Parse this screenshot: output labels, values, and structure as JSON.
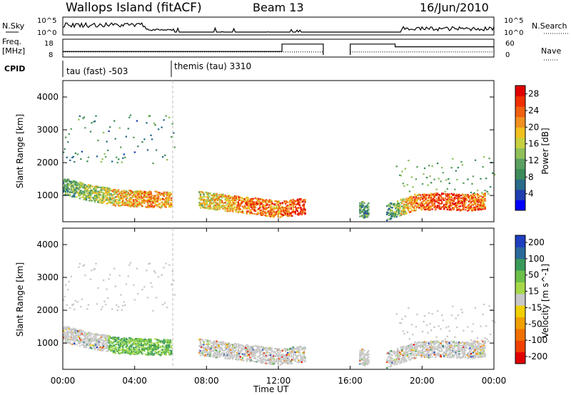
{
  "header": {
    "site": "Wallops Island (fitACF)",
    "beam": "Beam 13",
    "date": "16/Jun/2010"
  },
  "top_panels": {
    "nsky_label": "N.Sky",
    "nsky_ticks": [
      "10^5",
      "10^0"
    ],
    "nsearch_label": "N.Search",
    "nsearch_ticks": [
      "10^5",
      "10^0"
    ],
    "freq_label": "Freq.",
    "freq_unit": "[MHz]",
    "freq_ticks": [
      "18",
      "8"
    ],
    "nave_label": "Nave",
    "nave_ticks": [
      "60",
      "0"
    ],
    "cpid_label": "CPID",
    "cpid_modes": [
      "tau (fast) -503",
      "themis (tau) 3310"
    ]
  },
  "colors": {
    "power_scale": [
      "#0000ff",
      "#1e3fb0",
      "#2a6a8a",
      "#3d8b5a",
      "#5aa060",
      "#8fc05a",
      "#c8d040",
      "#f0c020",
      "#f09020",
      "#f06010",
      "#f03000",
      "#e00000"
    ],
    "velocity_scale": [
      "#1f3fbf",
      "#2a6a9a",
      "#3a9a5a",
      "#6cc04a",
      "#a6d84a",
      "#c8c8c8",
      "#f0d000",
      "#f0a000",
      "#f07000",
      "#f04000",
      "#e00000"
    ]
  },
  "chart_data": [
    {
      "type": "heatmap",
      "title": "Power",
      "xlabel": "Time UT",
      "ylabel": "Slant Range [km]",
      "xticks": [
        "00:00",
        "04:00",
        "08:00",
        "12:00",
        "16:00",
        "20:00",
        "00:00"
      ],
      "x_range_hours": [
        0,
        24
      ],
      "yticks": [
        1000,
        2000,
        3000,
        4000
      ],
      "ylim": [
        200,
        4500
      ],
      "colorbar_label": "Power [dB]",
      "colorbar_ticks": [
        4,
        8,
        12,
        16,
        20,
        24,
        28
      ],
      "colorbar_range": [
        0,
        30
      ],
      "data_gaps_hours": [
        [
          14.5,
          16.0
        ],
        [
          17.0,
          18.0
        ]
      ],
      "description_series": [
        {
          "hours": [
            0.0,
            1.5,
            3.0,
            4.5,
            6.0
          ],
          "range_km": [
            1300,
            1100,
            950,
            900,
            900
          ],
          "power_db": [
            10,
            14,
            18,
            22,
            20
          ]
        },
        {
          "hours": [
            7.5,
            9.0,
            10.5,
            12.0,
            13.5
          ],
          "range_km": [
            900,
            800,
            700,
            600,
            700
          ],
          "power_db": [
            16,
            20,
            24,
            22,
            26
          ]
        },
        {
          "hours": [
            16.5,
            18.0,
            19.5,
            21.0,
            22.5,
            23.5
          ],
          "range_km": [
            600,
            500,
            800,
            850,
            800,
            850
          ],
          "power_db": [
            10,
            8,
            22,
            26,
            24,
            22
          ]
        }
      ]
    },
    {
      "type": "heatmap",
      "title": "Velocity",
      "xlabel": "Time UT",
      "ylabel": "Slant Range [km]",
      "xticks": [
        "00:00",
        "04:00",
        "08:00",
        "12:00",
        "16:00",
        "20:00",
        "00:00"
      ],
      "x_range_hours": [
        0,
        24
      ],
      "yticks": [
        1000,
        2000,
        3000,
        4000
      ],
      "ylim": [
        200,
        4500
      ],
      "colorbar_label": "Velocity [m s^-1]",
      "colorbar_ticks": [
        200,
        100,
        50,
        15,
        -15,
        -50,
        -100,
        -200
      ],
      "colorbar_range": [
        -250,
        250
      ]
    }
  ]
}
